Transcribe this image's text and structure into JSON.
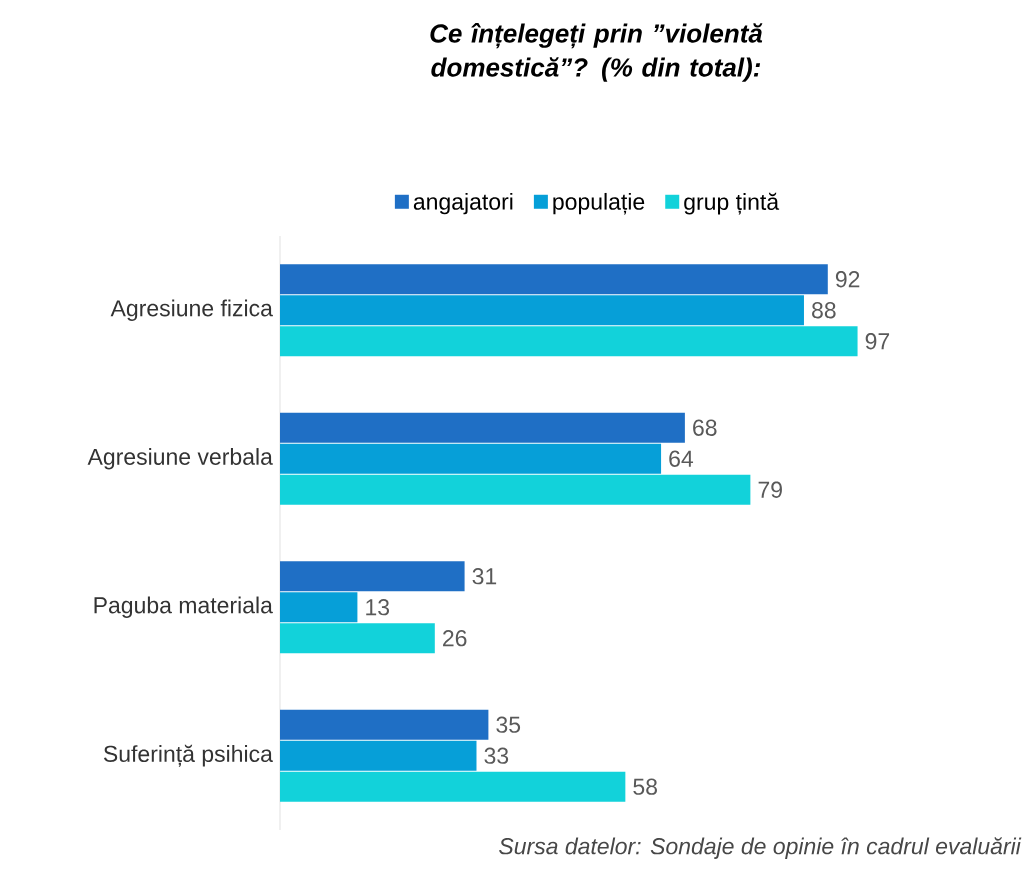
{
  "chart_data": {
    "type": "bar",
    "orientation": "horizontal",
    "title": "Ce înțelegeți prin ”violentă domestică”? (% din total):",
    "categories": [
      "Agresiune fizica",
      "Agresiune verbala",
      "Paguba materiala",
      "Suferință psihica"
    ],
    "series": [
      {
        "name": "angajatori",
        "color": "#1f6fc5",
        "values": [
          92,
          68,
          31,
          35
        ]
      },
      {
        "name": "populație",
        "color": "#069fd8",
        "values": [
          88,
          64,
          13,
          33
        ]
      },
      {
        "name": "grup țintă",
        "color": "#12d2da",
        "values": [
          97,
          79,
          26,
          58
        ]
      }
    ],
    "tick_labels": "y",
    "data_labels": true,
    "legend": "top",
    "grid": false,
    "annotations": [
      "Sursa datelor: Sondaje de opinie în cadrul evaluării"
    ]
  }
}
